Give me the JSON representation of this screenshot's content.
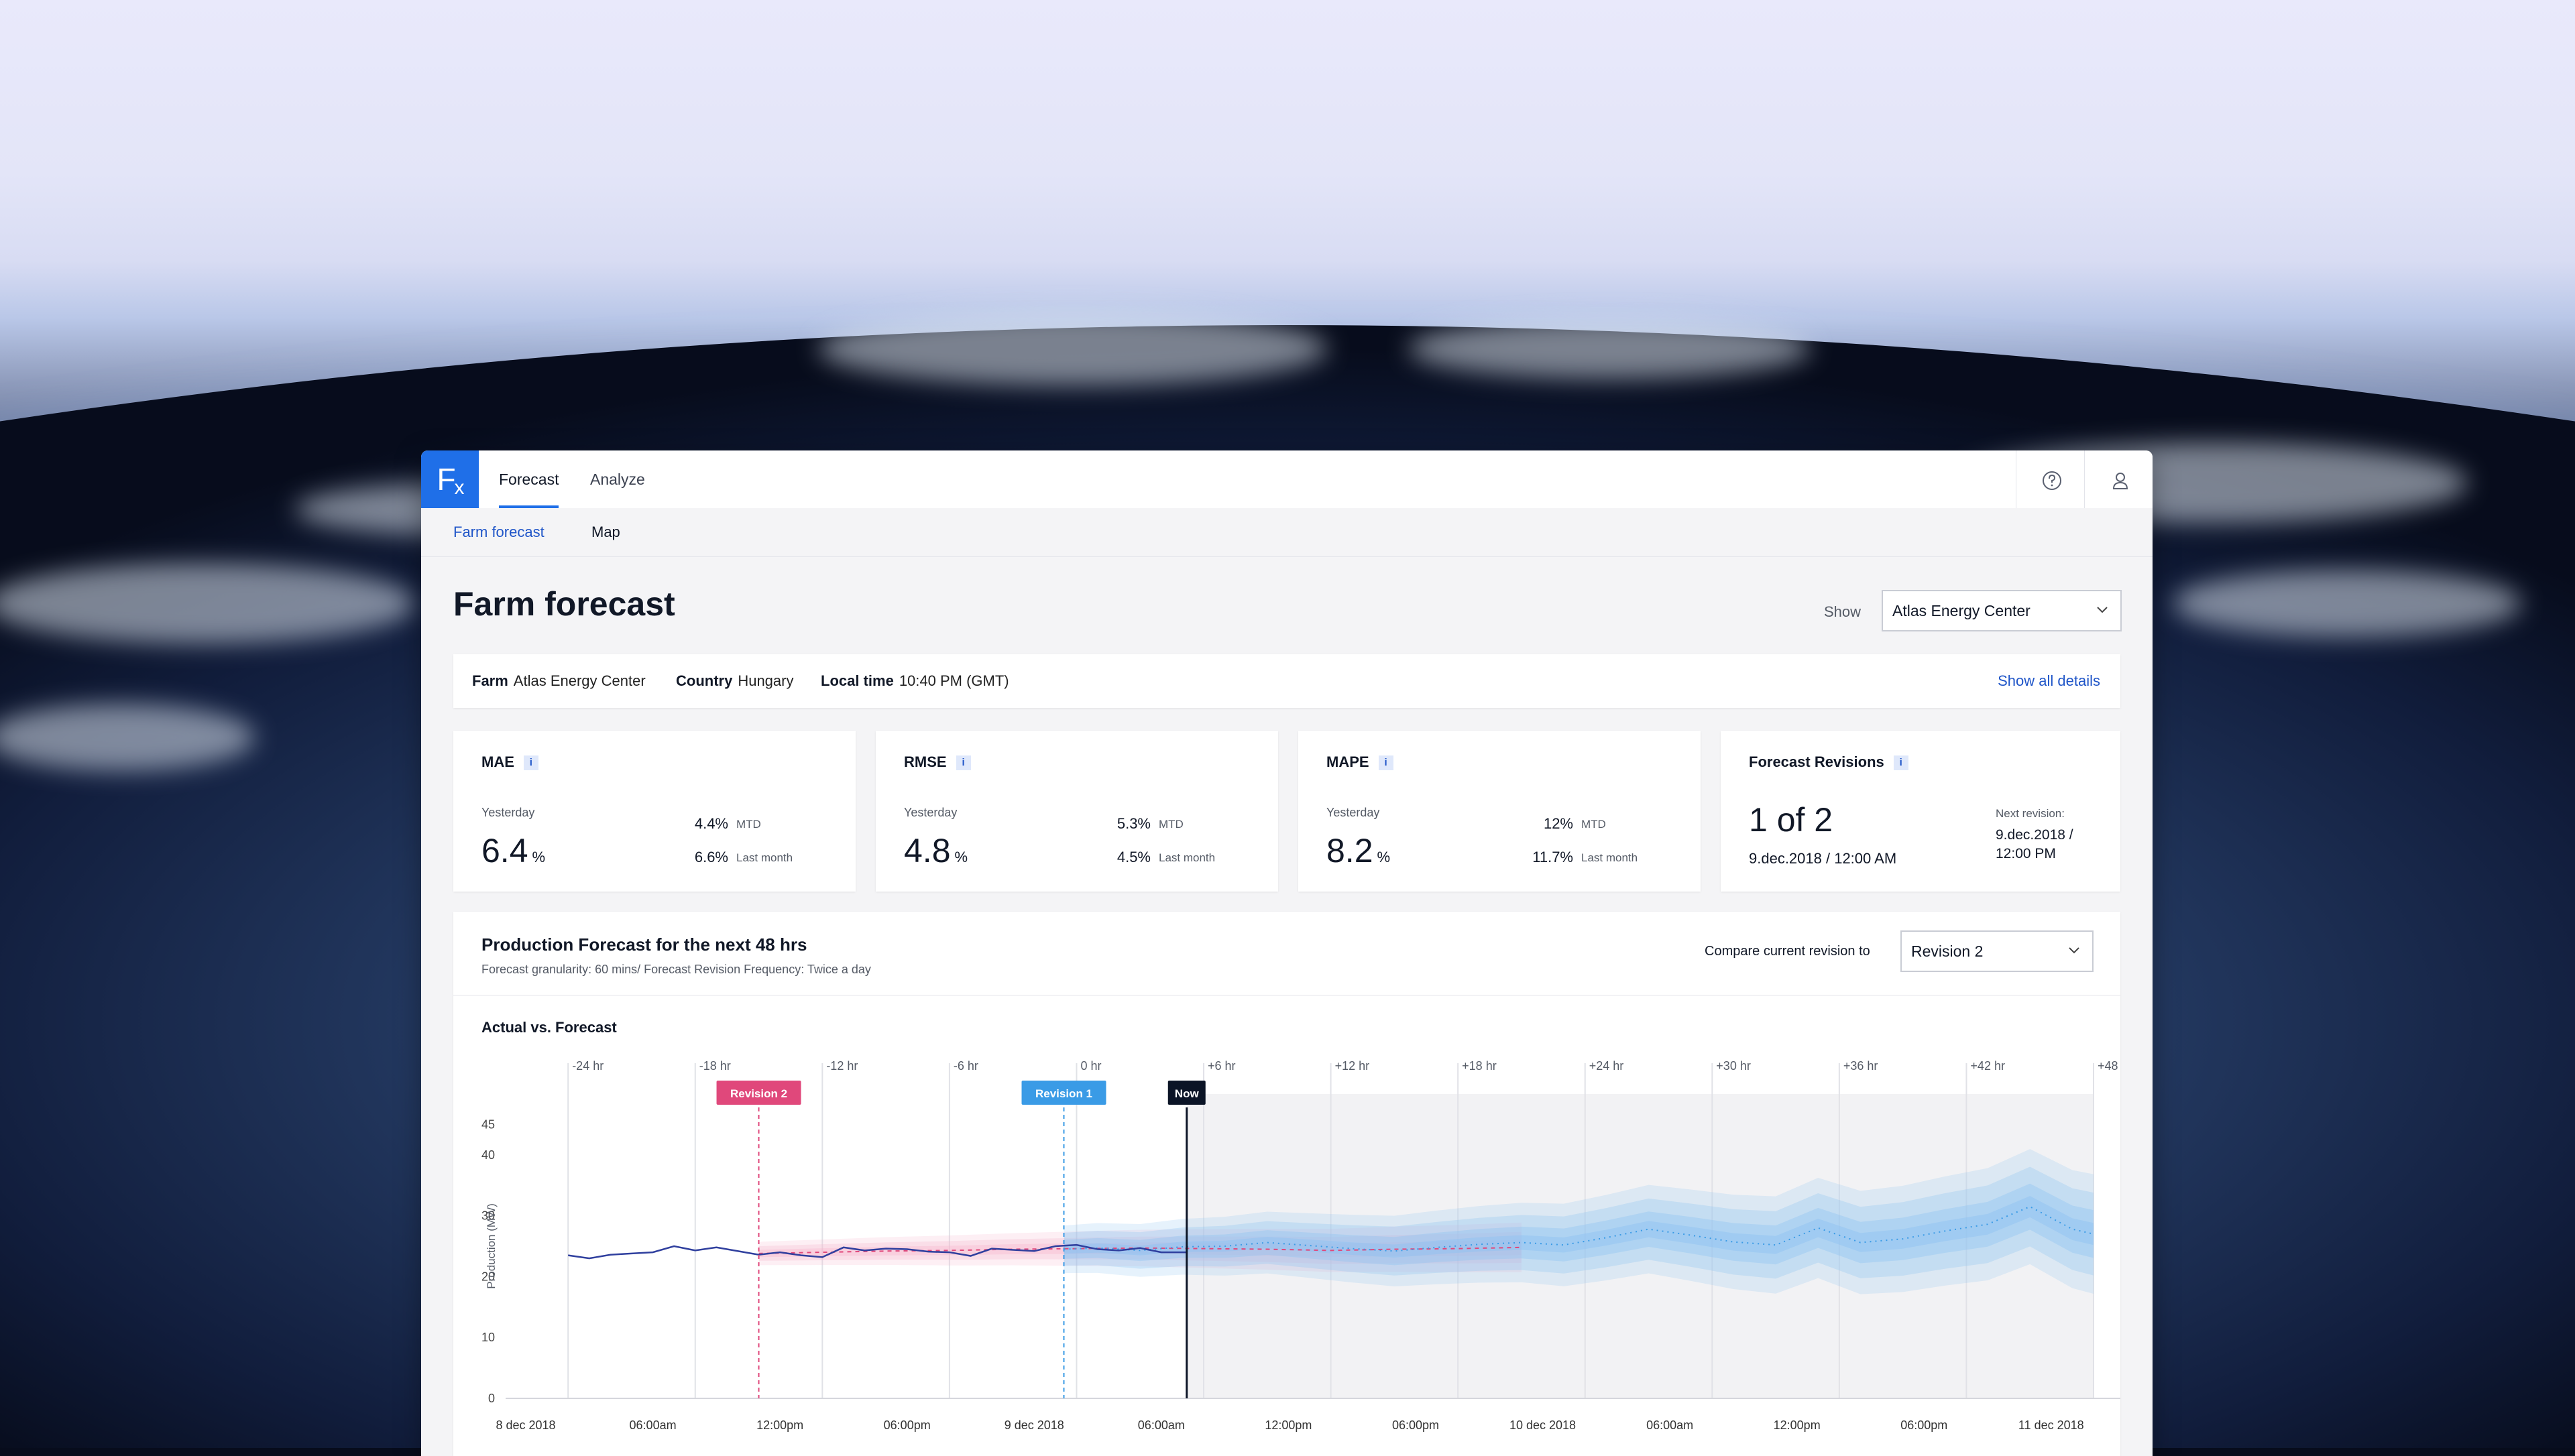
{
  "app": {
    "logo": "Fx",
    "tabs": [
      {
        "label": "Forecast",
        "active": true
      },
      {
        "label": "Analyze",
        "active": false
      }
    ],
    "icons": [
      "help-circle-icon",
      "user-icon"
    ],
    "accent": "#1f6fe8"
  },
  "subnav": [
    {
      "label": "Farm forecast",
      "active": true
    },
    {
      "label": "Map",
      "active": false
    }
  ],
  "page": {
    "title": "Farm forecast",
    "show_label": "Show",
    "show_value": "Atlas Energy Center"
  },
  "info": {
    "farm_label": "Farm",
    "farm": "Atlas Energy Center",
    "country_label": "Country",
    "country": "Hungary",
    "time_label": "Local time",
    "time": "10:40 PM (GMT)",
    "show_all": "Show all details"
  },
  "metrics": [
    {
      "title": "MAE",
      "yesterday_label": "Yesterday",
      "value": "6.4",
      "unit": "%",
      "mtd": "4.4%",
      "mtd_label": "MTD",
      "last_month": "6.6%",
      "last_month_label": "Last month"
    },
    {
      "title": "RMSE",
      "yesterday_label": "Yesterday",
      "value": "4.8",
      "unit": "%",
      "mtd": "5.3%",
      "mtd_label": "MTD",
      "last_month": "4.5%",
      "last_month_label": "Last month"
    },
    {
      "title": "MAPE",
      "yesterday_label": "Yesterday",
      "value": "8.2",
      "unit": "%",
      "mtd": "12%",
      "mtd_label": "MTD",
      "last_month": "11.7%",
      "last_month_label": "Last month"
    }
  ],
  "revisions": {
    "title": "Forecast Revisions",
    "count": "1 of 2",
    "current": "9.dec.2018 / 12:00 AM",
    "next_label": "Next revision:",
    "next_line1": "9.dec.2018 /",
    "next_line2": "12:00 PM"
  },
  "forecast": {
    "title": "Production Forecast for the next 48 hrs",
    "subtitle": "Forecast granularity: 60 mins/ Forecast Revision Frequency: Twice a day",
    "compare_label": "Compare current revision to",
    "compare_value": "Revision 2",
    "section_title": "Actual vs. Forecast"
  },
  "chart_data": {
    "type": "line",
    "ylabel": "Production (MW)",
    "ylim": [
      0,
      50
    ],
    "y_ticks": [
      0,
      10,
      20,
      30,
      40,
      45
    ],
    "x_range_hours": [
      -26,
      48
    ],
    "relative_ticks": [
      "-24 hr",
      "-18 hr",
      "-12 hr",
      "-6 hr",
      "0 hr",
      "+6 hr",
      "+12 hr",
      "+18 hr",
      "+24 hr",
      "+30 hr",
      "+36 hr",
      "+42 hr",
      "+48 hr"
    ],
    "relative_tick_hours": [
      -24,
      -18,
      -12,
      -6,
      0,
      6,
      12,
      18,
      24,
      30,
      36,
      42,
      48
    ],
    "date_ticks": [
      "8 dec 2018",
      "06:00am",
      "12:00pm",
      "06:00pm",
      "9 dec 2018",
      "06:00am",
      "12:00pm",
      "06:00pm",
      "10 dec 2018",
      "06:00am",
      "12:00pm",
      "06:00pm",
      "11 dec 2018"
    ],
    "date_tick_hours": [
      -26,
      -20,
      -14,
      -8,
      -2,
      4,
      10,
      16,
      22,
      28,
      34,
      40,
      46
    ],
    "markers": [
      {
        "label": "Revision 2",
        "hour": -15,
        "color": "#e0487b"
      },
      {
        "label": "Revision 1",
        "hour": -0.6,
        "color": "#3a9be6"
      },
      {
        "label": "Now",
        "hour": 5.2,
        "color": "#0b1426"
      }
    ],
    "series": [
      {
        "name": "Actual",
        "color": "#2f3f9e",
        "x": [
          -24,
          -23,
          -22,
          -21,
          -20,
          -19,
          -18,
          -17,
          -16,
          -15,
          -14,
          -13,
          -12,
          -11,
          -10,
          -9,
          -8,
          -7,
          -6,
          -5,
          -4,
          -3,
          -2,
          -1,
          0,
          1,
          2,
          3,
          4,
          5.2
        ],
        "values": [
          23.5,
          23,
          23.6,
          23.8,
          24,
          25,
          24.3,
          24.8,
          24.2,
          23.6,
          24,
          23.5,
          23.2,
          24.8,
          24.3,
          24.6,
          24.5,
          24.1,
          24,
          23.4,
          24.6,
          24.4,
          24.2,
          25,
          25.2,
          24.5,
          24.3,
          24.7,
          24,
          24
        ]
      },
      {
        "name": "Revision 2",
        "color": "#e0487b",
        "x": [
          -15,
          -12,
          -9,
          -6,
          -3,
          0,
          3,
          6,
          9,
          12,
          15,
          18,
          21
        ],
        "values": [
          23.8,
          24,
          24.2,
          24.3,
          24.5,
          24.6,
          24.7,
          24.6,
          24.5,
          24.3,
          24.5,
          24.6,
          24.8
        ]
      },
      {
        "name": "Revision 1",
        "color": "#3a9be6",
        "x": [
          -0.6,
          1,
          3,
          5,
          7,
          9,
          11,
          13,
          15,
          17,
          19,
          21,
          23,
          25,
          27,
          29,
          31,
          33,
          35,
          37,
          39,
          41,
          43,
          45,
          47,
          48
        ],
        "values": [
          24.5,
          24.7,
          24.3,
          24.9,
          25,
          25.6,
          25.1,
          24.6,
          24.2,
          24.8,
          25.3,
          25.6,
          25.2,
          26.4,
          27.8,
          26.8,
          25.7,
          25.2,
          28,
          25.6,
          26.2,
          27.5,
          28.6,
          31.5,
          27.8,
          27
        ]
      }
    ]
  }
}
